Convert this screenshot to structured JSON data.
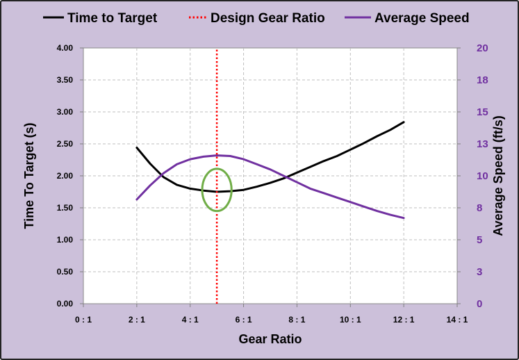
{
  "chart_data": {
    "type": "line",
    "xlabel": "Gear Ratio",
    "ylabel_left": "Time To Target (s)",
    "ylabel_right": "Average Speed (ft/s)",
    "xlim": [
      0,
      14
    ],
    "ylim_left": [
      0,
      4
    ],
    "ylim_right": [
      0,
      20
    ],
    "x_ticks": [
      {
        "v": 0,
        "label": "0 : 1"
      },
      {
        "v": 2,
        "label": "2 : 1"
      },
      {
        "v": 4,
        "label": "4 : 1"
      },
      {
        "v": 6,
        "label": "6 : 1"
      },
      {
        "v": 8,
        "label": "8 : 1"
      },
      {
        "v": 10,
        "label": "10 : 1"
      },
      {
        "v": 12,
        "label": "12 : 1"
      },
      {
        "v": 14,
        "label": "14 : 1"
      }
    ],
    "y_left_ticks": [
      {
        "v": 0,
        "label": "0.00"
      },
      {
        "v": 0.5,
        "label": "0.50"
      },
      {
        "v": 1,
        "label": "1.00"
      },
      {
        "v": 1.5,
        "label": "1.50"
      },
      {
        "v": 2,
        "label": "2.00"
      },
      {
        "v": 2.5,
        "label": "2.50"
      },
      {
        "v": 3,
        "label": "3.00"
      },
      {
        "v": 3.5,
        "label": "3.50"
      },
      {
        "v": 4,
        "label": "4.00"
      }
    ],
    "y_right_ticks": [
      {
        "v": 0,
        "label": "0"
      },
      {
        "v": 2.5,
        "label": "3"
      },
      {
        "v": 5,
        "label": "5"
      },
      {
        "v": 7.5,
        "label": "8"
      },
      {
        "v": 10,
        "label": "10"
      },
      {
        "v": 12.5,
        "label": "13"
      },
      {
        "v": 15,
        "label": "15"
      },
      {
        "v": 17.5,
        "label": "18"
      },
      {
        "v": 20,
        "label": "20"
      }
    ],
    "grid": true,
    "legend_position": "top",
    "series": [
      {
        "name": "Time to Target",
        "axis": "left",
        "color": "#000000",
        "style": "solid",
        "x": [
          2.0,
          2.5,
          3.0,
          3.5,
          4.0,
          4.5,
          5.0,
          5.5,
          6.0,
          6.5,
          7.0,
          7.5,
          8.0,
          8.5,
          9.0,
          9.5,
          10.0,
          10.5,
          11.0,
          11.5,
          12.0
        ],
        "y": [
          2.44,
          2.19,
          1.98,
          1.86,
          1.8,
          1.77,
          1.75,
          1.76,
          1.78,
          1.83,
          1.89,
          1.96,
          2.05,
          2.14,
          2.23,
          2.31,
          2.41,
          2.51,
          2.62,
          2.72,
          2.84
        ]
      },
      {
        "name": "Average Speed",
        "axis": "right",
        "color": "#7030a0",
        "style": "solid",
        "x": [
          2.0,
          2.5,
          3.0,
          3.5,
          4.0,
          4.5,
          5.0,
          5.5,
          6.0,
          6.5,
          7.0,
          7.5,
          8.0,
          8.5,
          9.0,
          9.5,
          10.0,
          10.5,
          11.0,
          11.5,
          12.0
        ],
        "y": [
          8.15,
          9.25,
          10.2,
          10.9,
          11.3,
          11.5,
          11.6,
          11.55,
          11.3,
          10.9,
          10.5,
          10.0,
          9.5,
          9.0,
          8.65,
          8.3,
          7.95,
          7.6,
          7.25,
          6.95,
          6.7
        ]
      },
      {
        "name": "Design Gear Ratio",
        "axis": "left",
        "color": "#ff0000",
        "style": "dotted",
        "x": [
          5.0,
          5.0
        ],
        "y": [
          0,
          4
        ]
      }
    ],
    "annotations": [
      {
        "type": "ellipse",
        "color": "#70ad47",
        "cx": 5.0,
        "cy": 1.78,
        "rx": 0.55,
        "ry": 0.33
      }
    ],
    "colors": {
      "background": "#ccc0da",
      "plot_area": "#ffffff",
      "right_axis": "#7030a0"
    }
  }
}
